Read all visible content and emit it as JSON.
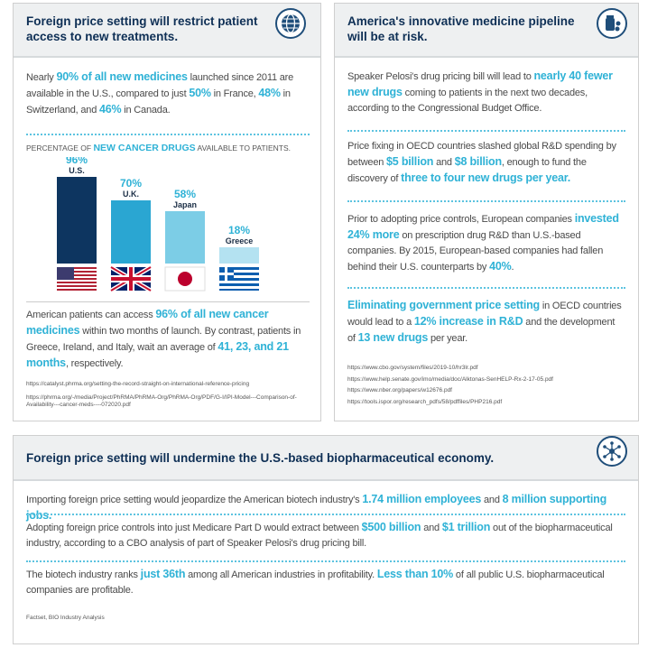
{
  "left": {
    "title": "Foreign price setting will restrict patient access to new treatments.",
    "intro": [
      {
        "t": "Nearly "
      },
      {
        "t": "90% of all new medicines",
        "hl": true
      },
      {
        "t": " launched since 2011 are available in the U.S., compared to just "
      },
      {
        "t": "50%",
        "hl": true
      },
      {
        "t": " in France, "
      },
      {
        "t": "48%",
        "hl": true
      },
      {
        "t": " in Switzerland, and "
      },
      {
        "t": "46%",
        "hl": true
      },
      {
        "t": " in Canada."
      }
    ],
    "chart": {
      "caption": [
        {
          "t": "PERCENTAGE OF "
        },
        {
          "t": "NEW CANCER DRUGS",
          "hl": true
        },
        {
          "t": " AVAILABLE TO PATIENTS."
        }
      ],
      "categories": [
        "U.S.",
        "U.K.",
        "Japan",
        "Greece"
      ],
      "values": [
        96,
        70,
        58,
        18
      ],
      "value_labels": [
        "96%",
        "70%",
        "58%",
        "18%"
      ],
      "colors": [
        "#0d3560",
        "#2aa6d2",
        "#7ccde6",
        "#b4e2f1"
      ]
    },
    "body": [
      {
        "t": "American patients can access "
      },
      {
        "t": "96% of all new cancer medicines",
        "hl": true
      },
      {
        "t": " within two months of launch. By contrast, patients in Greece, Ireland, and Italy, wait an average of "
      },
      {
        "t": "41, 23, and 21 months",
        "hl": true
      },
      {
        "t": ", respectively."
      }
    ],
    "sources": [
      "https://catalyst.phrma.org/setting-the-record-straight-on-international-reference-pricing",
      "https://phrma.org/-/media/Project/PhRMA/PhRMA-Org/PhRMA-Org/PDF/G-I/IPI-Model---Comparison-of-Availability---cancer-meds----072020.pdf"
    ]
  },
  "right": {
    "title": "America's innovative medicine pipeline will be at risk.",
    "paragraphs": [
      [
        {
          "t": "Speaker Pelosi's drug pricing bill will lead to "
        },
        {
          "t": "nearly 40 fewer new drugs",
          "hl": true
        },
        {
          "t": " coming to patients in the next two decades, according to the Congressional Budget Office."
        }
      ],
      [
        {
          "t": "Price fixing in OECD countries slashed global R&D spending by between "
        },
        {
          "t": "$5 billion",
          "hl": true
        },
        {
          "t": " and "
        },
        {
          "t": "$8 billion",
          "hl": true
        },
        {
          "t": ", enough to fund the discovery of "
        },
        {
          "t": "three to four new drugs per year.",
          "hl": true
        }
      ],
      [
        {
          "t": "Prior to adopting price controls, European companies "
        },
        {
          "t": "invested 24% more",
          "hl": true
        },
        {
          "t": " on prescription drug R&D than U.S.-based companies. By 2015, European-based companies had fallen behind their U.S. counterparts by "
        },
        {
          "t": "40%",
          "hl": true
        },
        {
          "t": "."
        }
      ],
      [
        {
          "t": "Eliminating government price setting",
          "hl": true
        },
        {
          "t": " in OECD countries would lead to a "
        },
        {
          "t": "12% increase in R&D",
          "hl": true
        },
        {
          "t": " and the development of "
        },
        {
          "t": "13 new drugs",
          "hl": true
        },
        {
          "t": " per year."
        }
      ]
    ],
    "sources": [
      "https://www.cbo.gov/system/files/2019-10/hr3lr.pdf",
      "https://www.help.senate.gov/imo/media/doc/Alktonas-SenHELP-Rx-2-17-05.pdf",
      "https://www.nber.org/papers/w12676.pdf",
      "https://tools.ispor.org/research_pdfs/58/pdffiles/PHP216.pdf"
    ]
  },
  "bottom": {
    "title": "Foreign price setting will undermine the U.S.-based biopharmaceutical economy.",
    "paragraphs": [
      [
        {
          "t": "Importing foreign price setting would jeopardize the American biotech industry's "
        },
        {
          "t": "1.74 million employees",
          "hl": true
        },
        {
          "t": " and "
        },
        {
          "t": "8 million supporting jobs.",
          "hl": true
        }
      ],
      [
        {
          "t": "Adopting foreign price controls into just Medicare Part D would extract between "
        },
        {
          "t": "$500 billion",
          "hl": true
        },
        {
          "t": " and "
        },
        {
          "t": "$1 trillion",
          "hl": true
        },
        {
          "t": " out of the biopharmaceutical industry, according to a CBO analysis of part of Speaker Pelosi's drug pricing bill."
        }
      ],
      [
        {
          "t": "The biotech industry ranks "
        },
        {
          "t": "just 36th",
          "hl": true
        },
        {
          "t": " among all American industries in profitability. "
        },
        {
          "t": "Less than 10%",
          "hl": true
        },
        {
          "t": " of all public U.S. biopharmaceutical companies are profitable."
        }
      ]
    ],
    "source": "Factset, BIO Industry Analysis"
  }
}
